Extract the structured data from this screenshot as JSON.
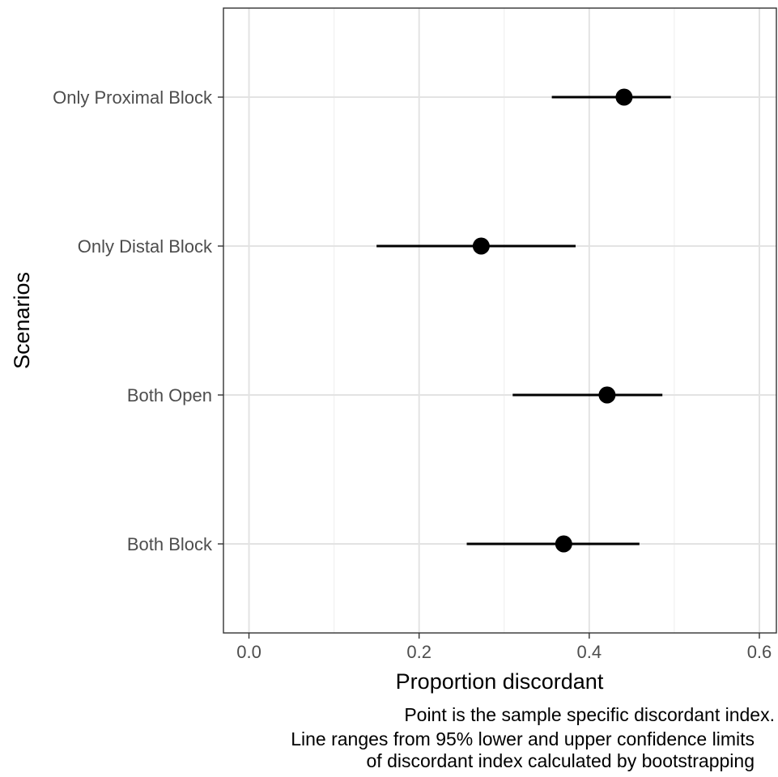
{
  "chart_data": {
    "type": "scatter",
    "title": "",
    "xlabel": "Proportion discordant",
    "ylabel": "Scenarios",
    "xlim": [
      -0.03,
      0.62
    ],
    "x_ticks": [
      0.0,
      0.2,
      0.4,
      0.6
    ],
    "x_tick_labels": [
      "0.0",
      "0.2",
      "0.4",
      "0.6"
    ],
    "categories": [
      "Only Proximal Block",
      "Only Distal Block",
      "Both Open",
      "Both Block"
    ],
    "points": [
      {
        "category": "Only Proximal Block",
        "estimate": 0.441,
        "lower": 0.356,
        "upper": 0.496
      },
      {
        "category": "Only Distal Block",
        "estimate": 0.273,
        "lower": 0.15,
        "upper": 0.384
      },
      {
        "category": "Both Open",
        "estimate": 0.421,
        "lower": 0.31,
        "upper": 0.486
      },
      {
        "category": "Both Block",
        "estimate": 0.37,
        "lower": 0.256,
        "upper": 0.459
      }
    ],
    "grid": true,
    "caption": [
      "Point is the sample specific discordant index.",
      "Line ranges from 95% lower and upper confidence limits",
      "of discordant index calculated by bootstrapping"
    ]
  },
  "colors": {
    "panel_border": "#333333",
    "grid_major": "#e3e3e3",
    "grid_minor": "#f0f0f0",
    "axis_text": "#4d4d4d",
    "title_text": "#000000",
    "marks": "#000000"
  }
}
